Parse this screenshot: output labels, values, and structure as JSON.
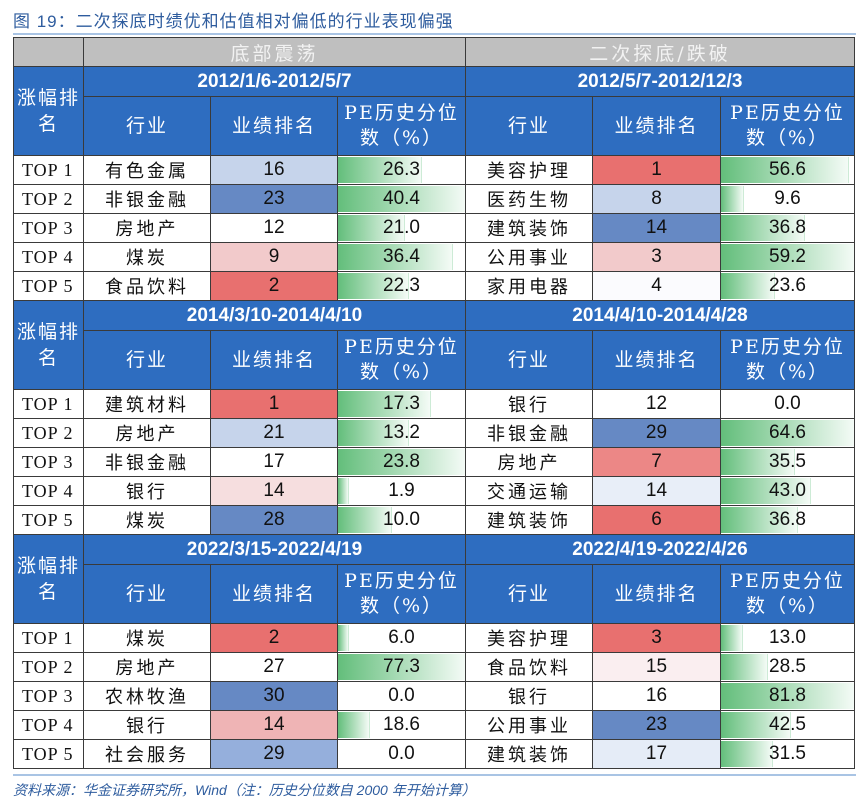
{
  "title": "图 19：二次探底时绩优和估值相对偏低的行业表现偏强",
  "footer": "资料来源：华金证券研究所，Wind（注：历史分位数自 2000 年开始计算）",
  "phase_headers": [
    "底部震荡",
    "二次探底/跌破"
  ],
  "rank_header": "涨幅排名",
  "column_headers": {
    "industry": "行业",
    "perf_rank": "业绩排名",
    "pe": "PE历史分位数（%）"
  },
  "colors": {
    "header_blue": "#2E6DC0",
    "gray": "#BFBFBF",
    "bar_green": "#63BE7B"
  },
  "ranks": [
    "TOP 1",
    "TOP 2",
    "TOP 3",
    "TOP 4",
    "TOP 5"
  ],
  "blocks": [
    {
      "left": {
        "period": "2012/1/6-2012/5/7",
        "rows": [
          {
            "industry": "有色金属",
            "perf_rank": "16",
            "perf_color": "#C6D4EB",
            "pe": "26.3"
          },
          {
            "industry": "非银金融",
            "perf_rank": "23",
            "perf_color": "#6689C4",
            "pe": "40.4"
          },
          {
            "industry": "房地产",
            "perf_rank": "12",
            "perf_color": "#FFFFFF",
            "pe": "21.0"
          },
          {
            "industry": "煤炭",
            "perf_rank": "9",
            "perf_color": "#F2CACB",
            "pe": "36.4"
          },
          {
            "industry": "食品饮料",
            "perf_rank": "2",
            "perf_color": "#E8706F",
            "pe": "22.3"
          }
        ]
      },
      "right": {
        "period": "2012/5/7-2012/12/3",
        "rows": [
          {
            "industry": "美容护理",
            "perf_rank": "1",
            "perf_color": "#E8706F",
            "pe": "56.6"
          },
          {
            "industry": "医药生物",
            "perf_rank": "8",
            "perf_color": "#C6D4EB",
            "pe": "9.6"
          },
          {
            "industry": "建筑装饰",
            "perf_rank": "14",
            "perf_color": "#6689C4",
            "pe": "36.8"
          },
          {
            "industry": "公用事业",
            "perf_rank": "3",
            "perf_color": "#F2CACB",
            "pe": "59.2"
          },
          {
            "industry": "家用电器",
            "perf_rank": "4",
            "perf_color": "#FBFBFE",
            "pe": "23.6"
          }
        ]
      }
    },
    {
      "left": {
        "period": "2014/3/10-2014/4/10",
        "rows": [
          {
            "industry": "建筑材料",
            "perf_rank": "1",
            "perf_color": "#E8706F",
            "pe": "17.3"
          },
          {
            "industry": "房地产",
            "perf_rank": "21",
            "perf_color": "#C6D4EB",
            "pe": "13.2"
          },
          {
            "industry": "非银金融",
            "perf_rank": "17",
            "perf_color": "#FFFFFF",
            "pe": "23.8"
          },
          {
            "industry": "银行",
            "perf_rank": "14",
            "perf_color": "#F6DEDF",
            "pe": "1.9"
          },
          {
            "industry": "煤炭",
            "perf_rank": "28",
            "perf_color": "#6689C4",
            "pe": "10.0"
          }
        ]
      },
      "right": {
        "period": "2014/4/10-2014/4/28",
        "rows": [
          {
            "industry": "银行",
            "perf_rank": "12",
            "perf_color": "#FFFFFF",
            "pe": "0.0"
          },
          {
            "industry": "非银金融",
            "perf_rank": "29",
            "perf_color": "#6689C4",
            "pe": "64.6"
          },
          {
            "industry": "房地产",
            "perf_rank": "7",
            "perf_color": "#EC8786",
            "pe": "35.5"
          },
          {
            "industry": "交通运输",
            "perf_rank": "14",
            "perf_color": "#E8EEF8",
            "pe": "43.0"
          },
          {
            "industry": "建筑装饰",
            "perf_rank": "6",
            "perf_color": "#E8706F",
            "pe": "36.8"
          }
        ]
      }
    },
    {
      "left": {
        "period": "2022/3/15-2022/4/19",
        "rows": [
          {
            "industry": "煤炭",
            "perf_rank": "2",
            "perf_color": "#E8706F",
            "pe": "6.0"
          },
          {
            "industry": "房地产",
            "perf_rank": "27",
            "perf_color": "#FFFFFF",
            "pe": "77.3"
          },
          {
            "industry": "农林牧渔",
            "perf_rank": "30",
            "perf_color": "#6689C4",
            "pe": "0.0"
          },
          {
            "industry": "银行",
            "perf_rank": "14",
            "perf_color": "#EFB4B5",
            "pe": "18.6"
          },
          {
            "industry": "社会服务",
            "perf_rank": "29",
            "perf_color": "#95AFDC",
            "pe": "0.0"
          }
        ]
      },
      "right": {
        "period": "2022/4/19-2022/4/26",
        "rows": [
          {
            "industry": "美容护理",
            "perf_rank": "3",
            "perf_color": "#E8706F",
            "pe": "13.0"
          },
          {
            "industry": "食品饮料",
            "perf_rank": "15",
            "perf_color": "#FAEEF0",
            "pe": "28.5"
          },
          {
            "industry": "银行",
            "perf_rank": "16",
            "perf_color": "#FFFFFF",
            "pe": "81.8"
          },
          {
            "industry": "公用事业",
            "perf_rank": "23",
            "perf_color": "#6689C4",
            "pe": "42.5"
          },
          {
            "industry": "建筑装饰",
            "perf_rank": "17",
            "perf_color": "#E5ECF7",
            "pe": "31.5"
          }
        ]
      }
    }
  ]
}
